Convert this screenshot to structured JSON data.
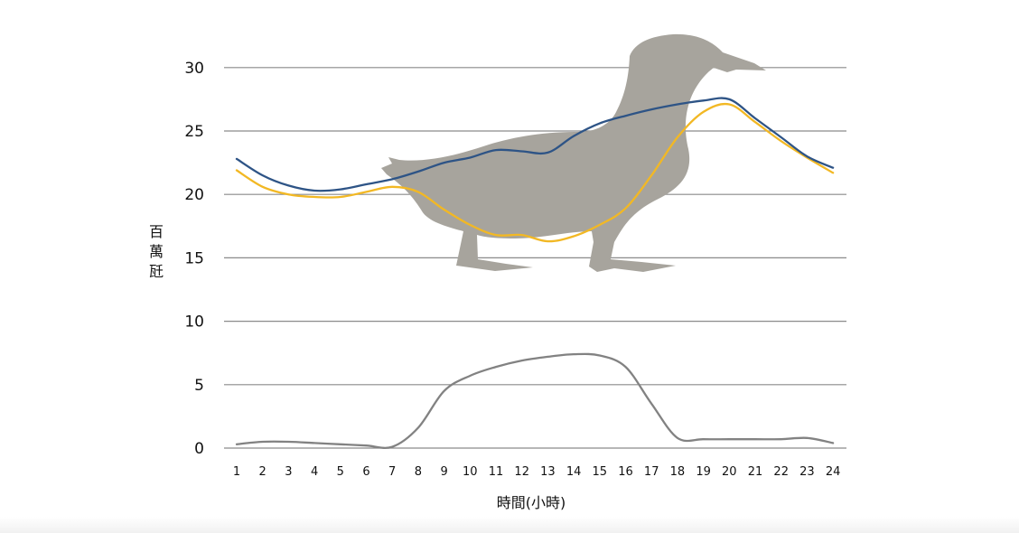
{
  "chart_data": {
    "type": "line",
    "title": "",
    "xlabel": "時間(小時)",
    "ylabel": "百萬瓩",
    "x": [
      1,
      2,
      3,
      4,
      5,
      6,
      7,
      8,
      9,
      10,
      11,
      12,
      13,
      14,
      15,
      16,
      17,
      18,
      19,
      20,
      21,
      22,
      23,
      24
    ],
    "xticks": [
      "1",
      "2",
      "3",
      "4",
      "5",
      "6",
      "7",
      "8",
      "9",
      "10",
      "11",
      "12",
      "13",
      "14",
      "15",
      "16",
      "17",
      "18",
      "19",
      "20",
      "21",
      "22",
      "23",
      "24"
    ],
    "yticks": [
      "0",
      "5",
      "10",
      "15",
      "20",
      "25",
      "30"
    ],
    "ylim": [
      0,
      32.5
    ],
    "grid": true,
    "legend": "none",
    "series": [
      {
        "color": "#2e5486",
        "values": [
          22.8,
          21.5,
          20.7,
          20.3,
          20.4,
          20.8,
          21.2,
          21.8,
          22.5,
          22.9,
          23.5,
          23.4,
          23.3,
          24.6,
          25.6,
          26.2,
          26.7,
          27.1,
          27.4,
          27.5,
          26.0,
          24.5,
          23.0,
          22.1
        ]
      },
      {
        "color": "#f2b824",
        "values": [
          21.9,
          20.6,
          20.0,
          19.8,
          19.8,
          20.2,
          20.6,
          20.2,
          18.8,
          17.6,
          16.8,
          16.8,
          16.3,
          16.7,
          17.6,
          18.9,
          21.5,
          24.5,
          26.5,
          27.1,
          25.7,
          24.2,
          22.9,
          21.7
        ]
      },
      {
        "color": "#828282",
        "values": [
          0.3,
          0.5,
          0.5,
          0.4,
          0.3,
          0.2,
          0.1,
          1.6,
          4.5,
          5.7,
          6.4,
          6.9,
          7.2,
          7.4,
          7.3,
          6.4,
          3.5,
          0.8,
          0.7,
          0.7,
          0.7,
          0.7,
          0.8,
          0.4
        ]
      }
    ]
  },
  "illustration": {
    "icon": "duck-silhouette-icon",
    "color": "#a7a49d"
  },
  "colors": {
    "grid": "#8a8a8a",
    "text": "#111111"
  }
}
